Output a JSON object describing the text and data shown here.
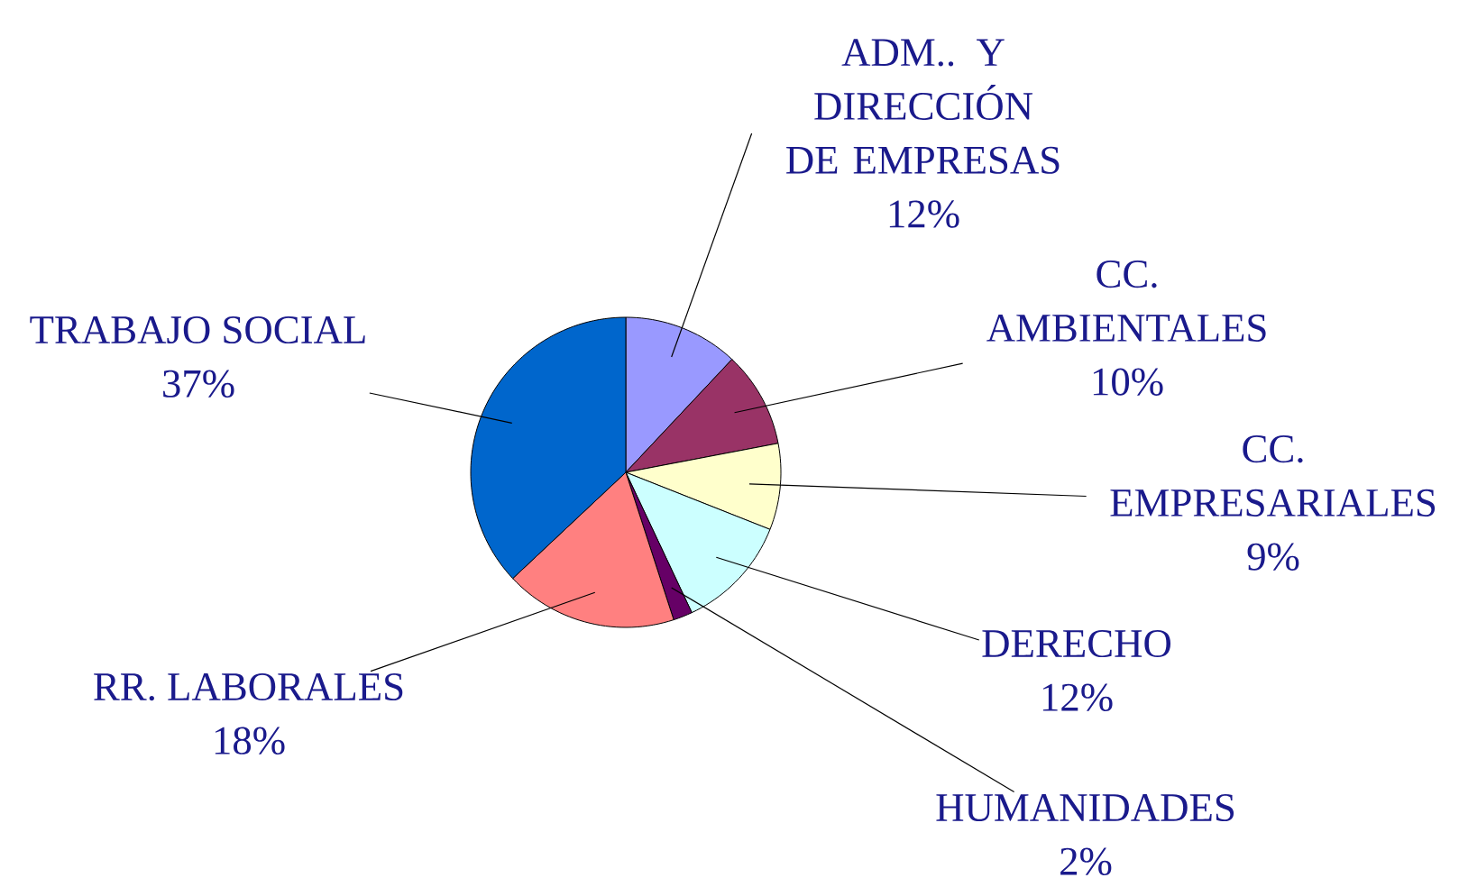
{
  "chart_data": {
    "type": "pie",
    "categories": [
      "ADM.. Y DIRECCIÓN DE EMPRESAS",
      "CC. AMBIENTALES",
      "CC. EMPRESARIALES",
      "DERECHO",
      "HUMANIDADES",
      "RR. LABORALES",
      "TRABAJO SOCIAL"
    ],
    "values": [
      12,
      10,
      9,
      12,
      2,
      18,
      37
    ],
    "value_labels": [
      "12%",
      "10%",
      "9%",
      "12%",
      "2%",
      "18%",
      "37%"
    ],
    "colors": [
      "#9999ff",
      "#993366",
      "#ffffcc",
      "#ccffff",
      "#660066",
      "#ff8080",
      "#0066cc"
    ],
    "legend": false
  }
}
